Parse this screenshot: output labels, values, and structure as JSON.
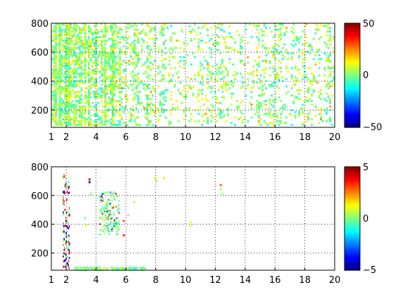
{
  "chart_data": [
    {
      "type": "heatmap",
      "xlim": [
        1,
        20
      ],
      "ylim": [
        80,
        800
      ],
      "xticks": [
        "1",
        "2",
        "4",
        "6",
        "8",
        "10",
        "12",
        "14",
        "16",
        "18",
        "20"
      ],
      "yticks": [
        "200",
        "400",
        "600",
        "800"
      ],
      "grid": true,
      "colorbar": {
        "colormap": "jet",
        "clim": [
          -50,
          50
        ],
        "ticks": [
          "50",
          "0",
          "−50"
        ]
      }
    },
    {
      "type": "heatmap",
      "xlim": [
        1,
        20
      ],
      "ylim": [
        80,
        800
      ],
      "xticks": [
        "1",
        "2",
        "4",
        "6",
        "8",
        "10",
        "12",
        "14",
        "16",
        "18",
        "20"
      ],
      "yticks": [
        "200",
        "400",
        "600",
        "800"
      ],
      "grid": true,
      "colorbar": {
        "colormap": "jet",
        "clim": [
          -5,
          5
        ],
        "ticks": [
          "5",
          "0",
          "−5"
        ]
      }
    }
  ]
}
